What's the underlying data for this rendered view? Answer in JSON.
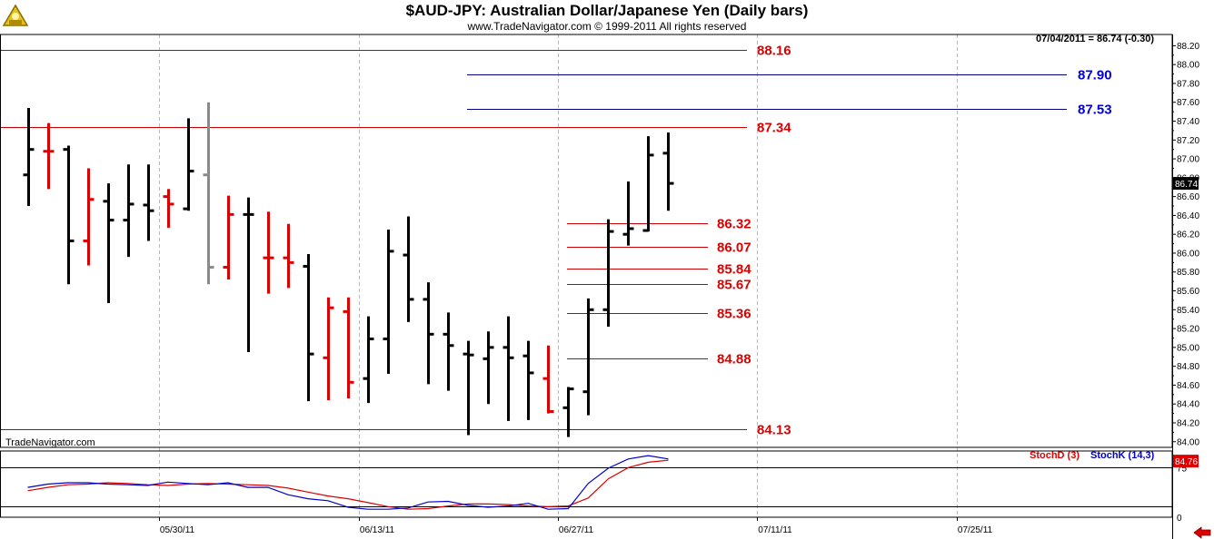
{
  "title": "$AUD-JPY:  Australian Dollar/Japanese Yen  (Daily bars)",
  "subtitle": "www.TradeNavigator.com © 1999-2011 All rights reserved",
  "header_readout": "07/04/2011 = 86.74 (-0.30)",
  "watermark": "TradeNavigator.com",
  "colors": {
    "up": "#000000",
    "down": "#dd0000",
    "gray": "#8a8a8a",
    "red_line": "#cc0000",
    "blue_line": "#000088",
    "stochK": "#0000cc",
    "stochD": "#dd0000"
  },
  "chart_data": [
    {
      "type": "ohlc",
      "title": "$AUD-JPY:  Australian Dollar/Japanese Yen  (Daily bars)",
      "ylim": [
        83.94,
        88.3
      ],
      "y_ticks": [
        "84.00",
        "84.20",
        "84.40",
        "84.60",
        "84.80",
        "85.00",
        "85.20",
        "85.40",
        "85.60",
        "85.80",
        "86.00",
        "86.20",
        "86.40",
        "86.60",
        "86.80",
        "87.00",
        "87.20",
        "87.40",
        "87.60",
        "87.80",
        "88.00",
        "88.20"
      ],
      "x_ticks": [
        "05/30/11",
        "06/13/11",
        "06/27/11",
        "07/11/11",
        "07/25/11"
      ],
      "last_price_label": "86.74",
      "bars": [
        {
          "o": 86.83,
          "h": 87.54,
          "l": 86.5,
          "c": 87.1,
          "col": "up"
        },
        {
          "o": 87.08,
          "h": 87.38,
          "l": 86.68,
          "c": 87.08,
          "col": "down"
        },
        {
          "o": 87.1,
          "h": 87.14,
          "l": 85.67,
          "c": 86.13,
          "col": "up"
        },
        {
          "o": 86.13,
          "h": 86.9,
          "l": 85.87,
          "c": 86.57,
          "col": "down"
        },
        {
          "o": 86.55,
          "h": 86.74,
          "l": 85.47,
          "c": 86.35,
          "col": "up"
        },
        {
          "o": 86.35,
          "h": 86.94,
          "l": 85.96,
          "c": 86.52,
          "col": "up"
        },
        {
          "o": 86.51,
          "h": 86.94,
          "l": 86.13,
          "c": 86.45,
          "col": "up"
        },
        {
          "o": 86.6,
          "h": 86.68,
          "l": 86.27,
          "c": 86.52,
          "col": "down"
        },
        {
          "o": 86.47,
          "h": 87.43,
          "l": 86.45,
          "c": 86.87,
          "col": "up"
        },
        {
          "o": 86.83,
          "h": 87.6,
          "l": 85.67,
          "c": 85.85,
          "col": "gray"
        },
        {
          "o": 85.85,
          "h": 86.61,
          "l": 85.72,
          "c": 86.41,
          "col": "down"
        },
        {
          "o": 86.41,
          "h": 86.59,
          "l": 84.95,
          "c": 86.41,
          "col": "up"
        },
        {
          "o": 85.95,
          "h": 86.44,
          "l": 85.57,
          "c": 85.95,
          "col": "down"
        },
        {
          "o": 85.95,
          "h": 86.31,
          "l": 85.63,
          "c": 85.9,
          "col": "down"
        },
        {
          "o": 85.86,
          "h": 85.99,
          "l": 84.43,
          "c": 84.93,
          "col": "up"
        },
        {
          "o": 84.89,
          "h": 85.53,
          "l": 84.44,
          "c": 85.42,
          "col": "down"
        },
        {
          "o": 85.38,
          "h": 85.53,
          "l": 84.46,
          "c": 84.63,
          "col": "down"
        },
        {
          "o": 84.67,
          "h": 85.33,
          "l": 84.41,
          "c": 85.09,
          "col": "up"
        },
        {
          "o": 85.09,
          "h": 86.25,
          "l": 84.72,
          "c": 86.02,
          "col": "up"
        },
        {
          "o": 85.98,
          "h": 86.39,
          "l": 85.27,
          "c": 85.51,
          "col": "up"
        },
        {
          "o": 85.51,
          "h": 85.69,
          "l": 84.61,
          "c": 85.14,
          "col": "up"
        },
        {
          "o": 85.14,
          "h": 85.37,
          "l": 84.54,
          "c": 85.02,
          "col": "up"
        },
        {
          "o": 84.93,
          "h": 85.07,
          "l": 84.07,
          "c": 84.92,
          "col": "up"
        },
        {
          "o": 84.88,
          "h": 85.17,
          "l": 84.4,
          "c": 85.0,
          "col": "up"
        },
        {
          "o": 85.0,
          "h": 85.33,
          "l": 84.22,
          "c": 84.89,
          "col": "up"
        },
        {
          "o": 84.91,
          "h": 85.07,
          "l": 84.23,
          "c": 84.73,
          "col": "up"
        },
        {
          "o": 84.67,
          "h": 85.02,
          "l": 84.3,
          "c": 84.32,
          "col": "down"
        },
        {
          "o": 84.36,
          "h": 84.58,
          "l": 84.05,
          "c": 84.56,
          "col": "up"
        },
        {
          "o": 84.53,
          "h": 85.52,
          "l": 84.28,
          "c": 85.4,
          "col": "up"
        },
        {
          "o": 85.4,
          "h": 86.36,
          "l": 85.22,
          "c": 86.23,
          "col": "up"
        },
        {
          "o": 86.2,
          "h": 86.76,
          "l": 86.08,
          "c": 86.26,
          "col": "up"
        },
        {
          "o": 86.24,
          "h": 87.24,
          "l": 86.23,
          "c": 87.04,
          "col": "up"
        },
        {
          "o": 87.06,
          "h": 87.28,
          "l": 86.45,
          "c": 86.74,
          "col": "up"
        }
      ],
      "levels": [
        {
          "label": "88.16",
          "value": 88.16,
          "color": "red",
          "span": "full"
        },
        {
          "label": "87.90",
          "value": 87.9,
          "color": "blue",
          "span": "right"
        },
        {
          "label": "87.53",
          "value": 87.53,
          "color": "blue",
          "span": "right"
        },
        {
          "label": "87.34",
          "value": 87.34,
          "color": "red",
          "span": "full"
        },
        {
          "label": "86.32",
          "value": 86.32,
          "color": "red",
          "span": "short"
        },
        {
          "label": "86.07",
          "value": 86.07,
          "color": "red",
          "span": "short"
        },
        {
          "label": "85.84",
          "value": 85.84,
          "color": "red",
          "span": "short"
        },
        {
          "label": "85.67",
          "value": 85.67,
          "color": "red",
          "span": "short"
        },
        {
          "label": "85.36",
          "value": 85.36,
          "color": "red",
          "span": "short"
        },
        {
          "label": "84.88",
          "value": 84.88,
          "color": "red",
          "span": "short"
        },
        {
          "label": "84.13",
          "value": 84.13,
          "color": "red",
          "span": "full"
        }
      ]
    },
    {
      "type": "line",
      "ylim": [
        0,
        100
      ],
      "y_ticks": [
        "75",
        "0"
      ],
      "last_value_label": "84.76",
      "series": [
        {
          "name": "StochD (3)",
          "color": "stochD",
          "values": [
            40,
            45,
            49,
            50,
            52,
            51,
            49,
            48,
            50,
            51,
            50,
            49,
            48,
            44,
            38,
            32,
            28,
            22,
            16,
            12,
            13,
            17,
            20,
            20,
            19,
            17,
            16,
            17,
            29,
            58,
            75,
            83,
            86
          ]
        },
        {
          "name": "StochK (14,3)",
          "color": "stochK",
          "values": [
            45,
            50,
            52,
            52,
            50,
            49,
            48,
            53,
            51,
            49,
            52,
            45,
            45,
            34,
            28,
            25,
            15,
            12,
            12,
            14,
            23,
            24,
            18,
            15,
            17,
            21,
            12,
            13,
            51,
            74,
            88,
            93,
            88
          ]
        }
      ]
    }
  ]
}
